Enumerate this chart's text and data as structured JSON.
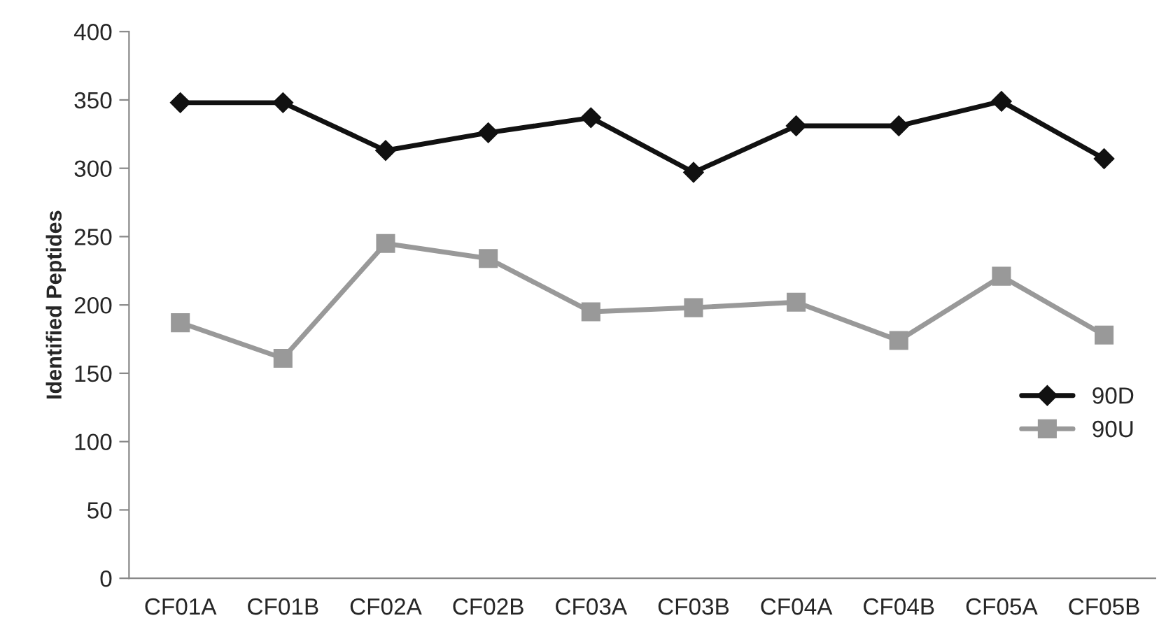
{
  "chart_data": {
    "type": "line",
    "ylabel": "Identified Peptides",
    "categories": [
      "CF01A",
      "CF01B",
      "CF02A",
      "CF02B",
      "CF03A",
      "CF03B",
      "CF04A",
      "CF04B",
      "CF05A",
      "CF05B"
    ],
    "series": [
      {
        "name": "90D",
        "color": "#111111",
        "marker": "diamond",
        "values": [
          348,
          348,
          313,
          326,
          337,
          297,
          331,
          331,
          349,
          307
        ]
      },
      {
        "name": "90U",
        "color": "#999999",
        "marker": "square",
        "values": [
          187,
          161,
          245,
          234,
          195,
          198,
          202,
          174,
          221,
          178
        ]
      }
    ],
    "ylim": [
      0,
      400
    ],
    "yticks": [
      0,
      50,
      100,
      150,
      200,
      250,
      300,
      350,
      400
    ],
    "grid": false,
    "legend": "right",
    "line_style": "solid"
  }
}
